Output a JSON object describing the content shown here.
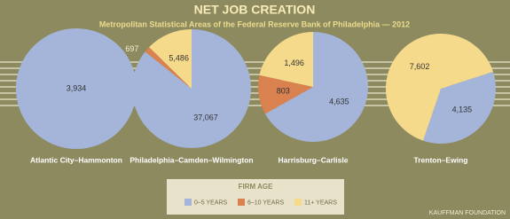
{
  "header": {
    "title": "NET JOB CREATION",
    "subtitle": "Metropolitan Statistical Areas of the Federal Reserve Bank of Philadelphia — 2012"
  },
  "legend": {
    "title": "FIRM AGE",
    "items": [
      {
        "name": "0–5 YEARS",
        "color": "#a5b5d9"
      },
      {
        "name": "6–10 YEARS",
        "color": "#d9814f"
      },
      {
        "name": "11+ YEARS",
        "color": "#f6da8c"
      }
    ]
  },
  "chart_data": [
    {
      "type": "pie",
      "title": "Atlantic City–Hammonton",
      "values": [
        3934,
        null,
        null
      ],
      "value_labels": [
        "3,934",
        null,
        null
      ]
    },
    {
      "type": "pie",
      "title": "Philadelphia–Camden–Wilmington",
      "values": [
        37067,
        697,
        5486
      ],
      "value_labels": [
        "37,067",
        "697",
        "5,486"
      ]
    },
    {
      "type": "pie",
      "title": "Harrisburg–Carlisle",
      "values": [
        4635,
        803,
        1496
      ],
      "value_labels": [
        "4,635",
        "803",
        "1,496"
      ]
    },
    {
      "type": "pie",
      "title": "Trenton–Ewing",
      "values": [
        4135,
        null,
        7602
      ],
      "value_labels": [
        "4,135",
        null,
        "7,602"
      ]
    }
  ],
  "footer": "KAUFFMAN FOUNDATION"
}
